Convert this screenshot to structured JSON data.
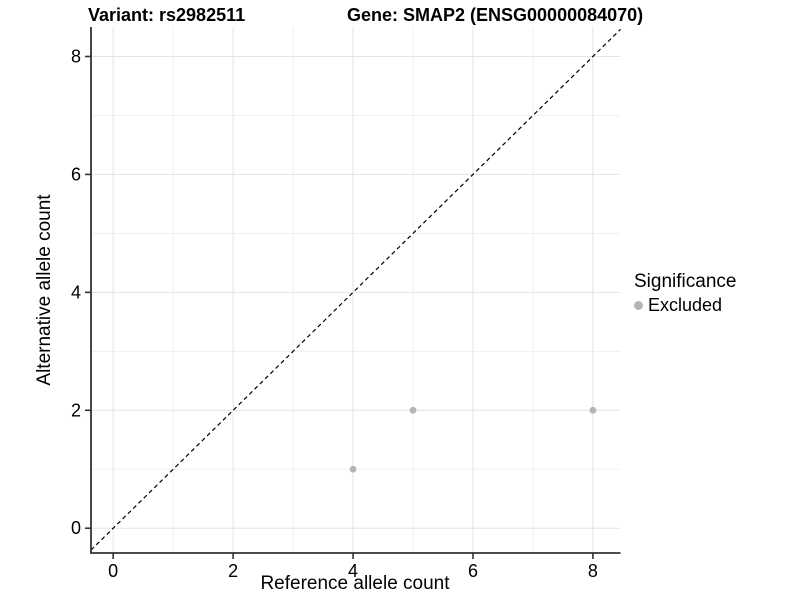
{
  "titles": {
    "variant": "Variant: rs2982511",
    "gene": "Gene: SMAP2 (ENSG00000084070)"
  },
  "chart_data": {
    "type": "scatter",
    "title": "Variant: rs2982511   Gene: SMAP2 (ENSG00000084070)",
    "xlabel": "Reference allele count",
    "ylabel": "Alternative allele count",
    "xlim": [
      -0.37,
      8.46
    ],
    "ylim": [
      -0.42,
      8.5
    ],
    "x_ticks": [
      0,
      2,
      4,
      6,
      8
    ],
    "y_ticks": [
      0,
      2,
      4,
      6,
      8
    ],
    "x_minor_gridlines": [
      1,
      3,
      5,
      7
    ],
    "y_minor_gridlines": [
      1,
      3,
      5,
      7
    ],
    "grid": true,
    "legend_position": "right",
    "series": [
      {
        "name": "Excluded",
        "color": "#b5b5b5",
        "points": [
          [
            4,
            1
          ],
          [
            5,
            2
          ],
          [
            8,
            2
          ]
        ]
      }
    ],
    "reference_line": {
      "type": "identity y=x",
      "style": "dashed",
      "color": "#000000"
    },
    "legend": {
      "title": "Significance",
      "items": [
        {
          "label": "Excluded",
          "color": "#b5b5b5"
        }
      ]
    },
    "colors": {
      "background": "#ffffff",
      "panel_background": "#ffffff",
      "grid_major": "#e3e3e3",
      "grid_minor": "#f0f0f0",
      "axis_line": "#333333",
      "text": "#000000",
      "point": "#b5b5b5"
    }
  }
}
